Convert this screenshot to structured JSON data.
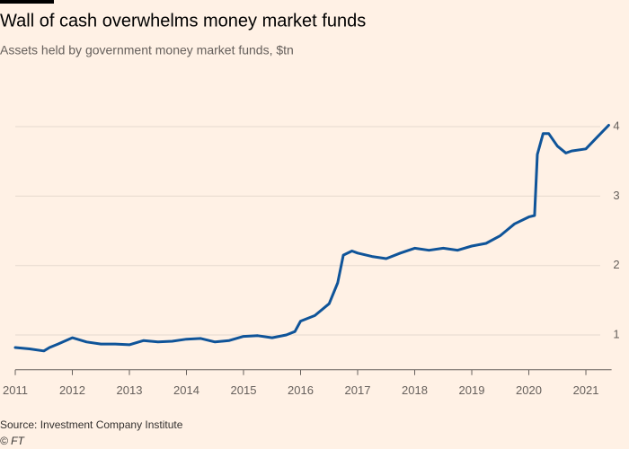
{
  "chart_data": {
    "type": "line",
    "title": "Wall of cash overwhelms money market funds",
    "subtitle": "Assets held by government money market funds, $tn",
    "source": "Source: Investment Company Institute",
    "credit": "© FT",
    "x": [
      2011.0,
      2011.25,
      2011.5,
      2011.6,
      2011.75,
      2012.0,
      2012.25,
      2012.5,
      2012.75,
      2013.0,
      2013.25,
      2013.5,
      2013.75,
      2014.0,
      2014.25,
      2014.5,
      2014.75,
      2015.0,
      2015.25,
      2015.5,
      2015.75,
      2015.9,
      2016.0,
      2016.25,
      2016.5,
      2016.65,
      2016.75,
      2016.9,
      2017.0,
      2017.25,
      2017.5,
      2017.75,
      2018.0,
      2018.25,
      2018.5,
      2018.75,
      2019.0,
      2019.25,
      2019.5,
      2019.75,
      2020.0,
      2020.1,
      2020.15,
      2020.25,
      2020.35,
      2020.5,
      2020.65,
      2020.75,
      2021.0,
      2021.2,
      2021.4
    ],
    "values": [
      0.82,
      0.8,
      0.77,
      0.82,
      0.87,
      0.96,
      0.9,
      0.87,
      0.87,
      0.86,
      0.92,
      0.9,
      0.91,
      0.94,
      0.95,
      0.9,
      0.92,
      0.98,
      0.99,
      0.96,
      1.0,
      1.05,
      1.2,
      1.28,
      1.45,
      1.75,
      2.15,
      2.21,
      2.18,
      2.13,
      2.1,
      2.18,
      2.25,
      2.22,
      2.25,
      2.22,
      2.28,
      2.32,
      2.43,
      2.6,
      2.7,
      2.72,
      3.6,
      3.9,
      3.9,
      3.72,
      3.62,
      3.65,
      3.68,
      3.85,
      4.02
    ],
    "color": "#0f5499",
    "xlim": [
      2011,
      2021.45
    ],
    "xticks": [
      2011,
      2012,
      2013,
      2014,
      2015,
      2016,
      2017,
      2018,
      2019,
      2020,
      2021
    ],
    "ylim": [
      0.5,
      4.25
    ],
    "yticks": [
      1,
      2,
      3,
      4
    ],
    "grid": true
  }
}
